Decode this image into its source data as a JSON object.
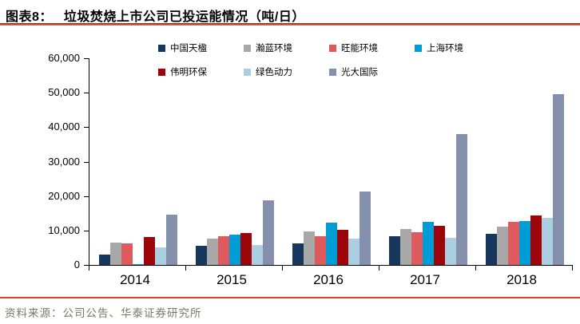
{
  "header": {
    "figure_label": "图表8：",
    "title": "垃圾焚烧上市公司已投运能情况（吨/日）"
  },
  "footer": {
    "source": "资料来源：公司公告、华泰证券研究所"
  },
  "colors": {
    "title_rule_dark": "#9a2f20",
    "title_rule_light": "#e56a4f",
    "footer_rule": "#c94b2f",
    "axis": "#000000"
  },
  "chart_data": {
    "type": "bar",
    "title": "垃圾焚烧上市公司已投运能情况（吨/日）",
    "categories": [
      "2014",
      "2015",
      "2016",
      "2017",
      "2018"
    ],
    "series": [
      {
        "name": "中国天楹",
        "color": "#17375D",
        "values": [
          2900,
          5600,
          6300,
          8400,
          9100
        ]
      },
      {
        "name": "瀚蓝环境",
        "color": "#A8A8A8",
        "values": [
          6600,
          7600,
          9800,
          10500,
          11100
        ]
      },
      {
        "name": "旺能环境",
        "color": "#DE5A5D",
        "values": [
          6300,
          8300,
          8300,
          9500,
          12400
        ]
      },
      {
        "name": "上海环境",
        "color": "#009CD6",
        "values": [
          300,
          8800,
          12300,
          12500,
          12800
        ]
      },
      {
        "name": "伟明环保",
        "color": "#9C0509",
        "values": [
          8100,
          9200,
          10200,
          11300,
          14300
        ]
      },
      {
        "name": "绿色动力",
        "color": "#ABCFE0",
        "values": [
          5200,
          5900,
          7600,
          7800,
          13700
        ]
      },
      {
        "name": "光大国际",
        "color": "#8591AC",
        "values": [
          14600,
          18700,
          21200,
          38000,
          49500
        ]
      }
    ],
    "xlabel": "",
    "ylabel": "",
    "ylim": [
      0,
      60000
    ],
    "ytick_interval": 10000,
    "ytick_labels": [
      "0",
      "10,000",
      "20,000",
      "30,000",
      "40,000",
      "50,000",
      "60,000"
    ],
    "legend_position": "top",
    "grid": false
  }
}
